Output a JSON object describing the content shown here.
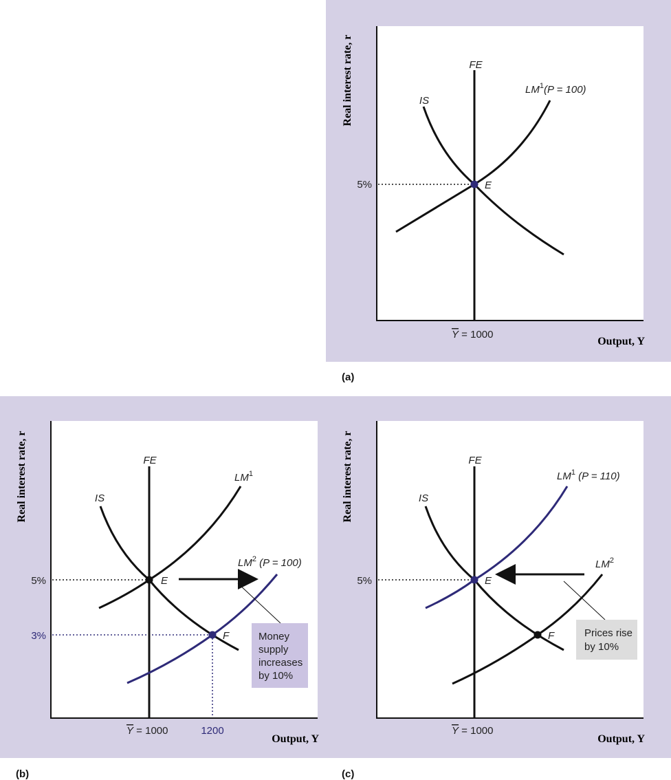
{
  "colors": {
    "panel_bg": "#d5d0e5",
    "purple": "#2e2a78",
    "black": "#111111",
    "note_purple": "#cbc3e2",
    "note_gray": "#dddddd"
  },
  "common": {
    "ylabel": "Real interest rate, r",
    "xlabel": "Output, Y",
    "fe": "FE",
    "is": "IS",
    "r5": "5%",
    "ybar_sym": "Y",
    "ybar_val": " = 1000",
    "point_e": "E",
    "point_f": "F"
  },
  "panel_a": {
    "label": "(a)",
    "lm_main": "LM",
    "lm_sup": "1",
    "lm_rest": "(P = 100)"
  },
  "panel_b": {
    "label": "(b)",
    "lm1_main": "LM",
    "lm1_sup": "1",
    "lm2_main": "LM",
    "lm2_sup": "2",
    "lm2_rest": " (P = 100)",
    "r3": "3%",
    "y1200": "1200",
    "note_lines": [
      "Money",
      "supply",
      "increases",
      "by 10%"
    ]
  },
  "panel_c": {
    "label": "(c)",
    "lm1_main": "LM",
    "lm1_sup": "1",
    "lm1_rest": " (P = 110)",
    "lm2_main": "LM",
    "lm2_sup": "2",
    "note_lines": [
      "Prices rise",
      "by 10%"
    ]
  }
}
